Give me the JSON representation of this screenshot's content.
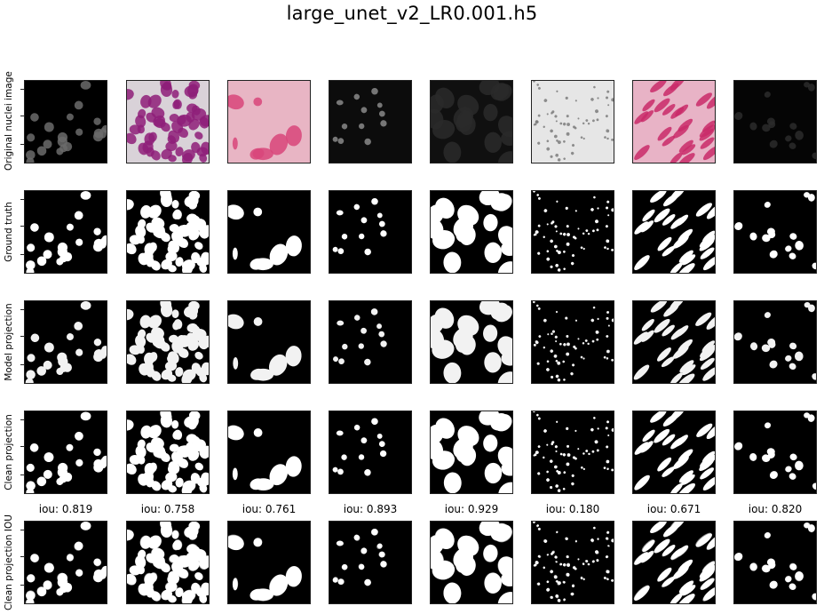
{
  "figure": {
    "title": "large_unet_v2_LR0.001.h5"
  },
  "rows": [
    {
      "label": "Original nuclei image"
    },
    {
      "label": "Ground truth"
    },
    {
      "label": "Model projection"
    },
    {
      "label": "Clean projection"
    },
    {
      "label": "Clean projection IOU"
    }
  ],
  "iou_scores": [
    "iou: 0.819",
    "iou: 0.758",
    "iou: 0.761",
    "iou: 0.893",
    "iou: 0.929",
    "iou: 0.180",
    "iou: 0.671",
    "iou: 0.820"
  ],
  "original_images": [
    {
      "background": "#000000",
      "blob": "#6b6b6b",
      "description": "dark fluorescence"
    },
    {
      "background": "#d9d2d8",
      "blob": "#8e1f79",
      "description": "purple stained"
    },
    {
      "background": "#e8b5c4",
      "blob": "#d8457a",
      "description": "pink tissue"
    },
    {
      "background": "#0c0c0c",
      "blob": "#8a8a8a",
      "description": "dark fluorescence"
    },
    {
      "background": "#101010",
      "blob": "#2a2a2a",
      "description": "dark fluorescence"
    },
    {
      "background": "#e6e6e6",
      "blob": "#7b7b7b",
      "description": "grey clusters"
    },
    {
      "background": "#e8b3c6",
      "blob": "#c92a68",
      "description": "pink elongated"
    },
    {
      "background": "#050505",
      "blob": "#2b2b2b",
      "description": "dark fluorescence"
    }
  ]
}
